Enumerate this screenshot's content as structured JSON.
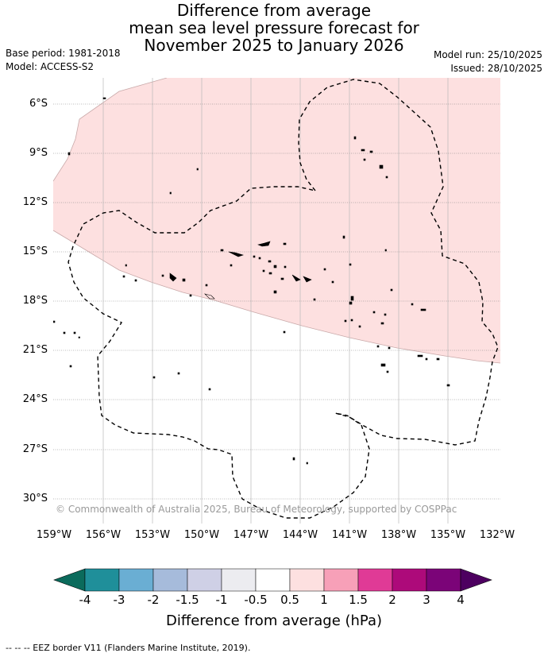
{
  "title": {
    "line1": "Difference from average",
    "line2": "mean sea level pressure forecast for",
    "line3": "November 2025 to January 2026"
  },
  "meta": {
    "base_period": "Base period: 1981-2018",
    "model": "Model: ACCESS-S2",
    "model_run": "Model run: 25/10/2025",
    "issued": "Issued: 28/10/2025"
  },
  "map": {
    "lat_labels": [
      "6°S",
      "9°S",
      "12°S",
      "15°S",
      "18°S",
      "21°S",
      "24°S",
      "27°S",
      "30°S"
    ],
    "lon_labels": [
      "159°W",
      "156°W",
      "153°W",
      "150°W",
      "147°W",
      "144°W",
      "141°W",
      "138°W",
      "135°W",
      "132°W"
    ],
    "copyright": "© Commonwealth of Australia 2025, Bureau of Meteorology, supported by COSPPac",
    "anomaly_region": "0.5 to 1 hPa",
    "colors": {
      "positive_fill": "#fde0e0",
      "land": "#000000",
      "grid": "#b0b0b0",
      "border": "#000000"
    }
  },
  "colorbar": {
    "title": "Difference from average (hPa)",
    "labels": [
      "-4",
      "-3",
      "-2",
      "-1.5",
      "-1",
      "-0.5",
      "0.5",
      "1",
      "1.5",
      "2",
      "3",
      "4"
    ],
    "colors": [
      "#0b6b5c",
      "#1f8f9a",
      "#6aaed3",
      "#a6bbdb",
      "#cfd0e6",
      "#ececf0",
      "#ffffff",
      "#fde0e0",
      "#f7a0b8",
      "#e03a96",
      "#ad0a7a",
      "#7b0478",
      "#4d0060"
    ]
  },
  "footer": {
    "legend_text": "--  --  -- EEZ border V11 (Flanders Marine Institute, 2019)."
  }
}
